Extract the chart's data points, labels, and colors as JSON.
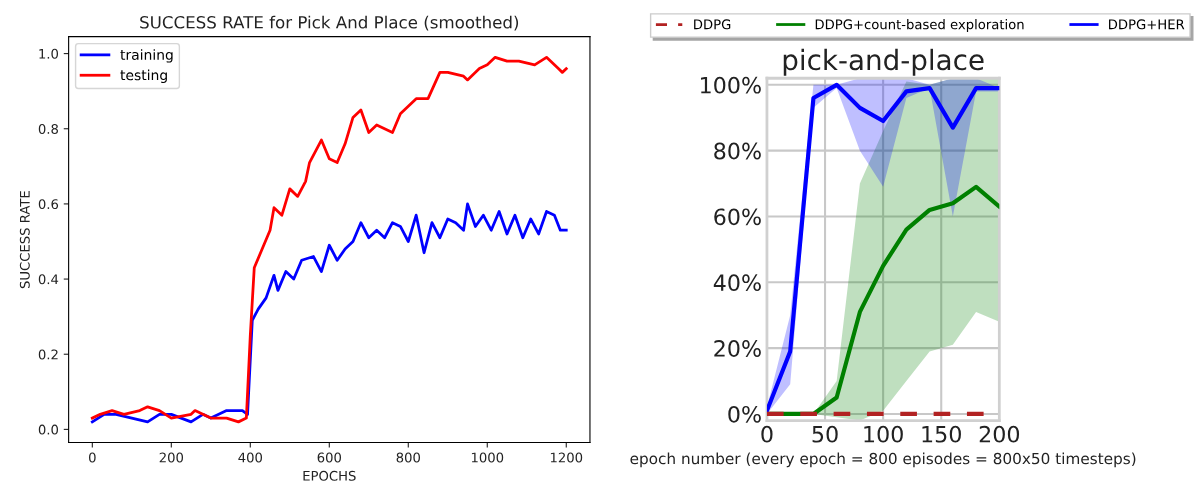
{
  "chart_data": [
    {
      "type": "line",
      "title": "SUCCESS RATE for Pick And Place (smoothed)",
      "xlabel": "EPOCHS",
      "ylabel": "SUCCESS RATE",
      "xlim": [
        -60,
        1260
      ],
      "ylim": [
        -0.035,
        1.045
      ],
      "xticks": [
        0,
        200,
        400,
        600,
        800,
        1000,
        1200
      ],
      "yticks": [
        {
          "value": 0,
          "label": "0.0"
        },
        0.2,
        0.4,
        0.6,
        0.8,
        {
          "value": 1,
          "label": "1.0"
        }
      ],
      "grid": false,
      "legend": "top left",
      "series": [
        {
          "name": "training",
          "color": "#0000ff",
          "x": [
            0,
            30,
            60,
            100,
            140,
            170,
            200,
            250,
            280,
            300,
            340,
            380,
            393,
            405,
            420,
            440,
            460,
            470,
            490,
            510,
            530,
            560,
            580,
            600,
            620,
            640,
            660,
            680,
            700,
            720,
            740,
            760,
            780,
            800,
            820,
            840,
            860,
            880,
            900,
            920,
            940,
            950,
            970,
            990,
            1010,
            1030,
            1050,
            1070,
            1090,
            1110,
            1130,
            1150,
            1170,
            1185,
            1200
          ],
          "values": [
            0.02,
            0.04,
            0.04,
            0.03,
            0.02,
            0.04,
            0.04,
            0.02,
            0.04,
            0.03,
            0.05,
            0.05,
            0.04,
            0.29,
            0.32,
            0.35,
            0.41,
            0.37,
            0.42,
            0.4,
            0.45,
            0.46,
            0.42,
            0.49,
            0.45,
            0.48,
            0.5,
            0.55,
            0.51,
            0.53,
            0.51,
            0.55,
            0.54,
            0.5,
            0.57,
            0.47,
            0.55,
            0.51,
            0.56,
            0.55,
            0.53,
            0.6,
            0.54,
            0.57,
            0.53,
            0.58,
            0.52,
            0.57,
            0.51,
            0.56,
            0.52,
            0.58,
            0.57,
            0.53,
            0.53
          ]
        },
        {
          "name": "testing",
          "color": "#ff0000",
          "x": [
            0,
            20,
            50,
            80,
            120,
            140,
            170,
            200,
            250,
            260,
            300,
            340,
            370,
            390,
            400,
            410,
            430,
            450,
            460,
            480,
            500,
            520,
            540,
            550,
            580,
            600,
            620,
            640,
            660,
            680,
            700,
            720,
            740,
            760,
            780,
            800,
            820,
            850,
            880,
            900,
            940,
            950,
            980,
            1000,
            1020,
            1050,
            1080,
            1120,
            1150,
            1180,
            1190,
            1200
          ],
          "values": [
            0.03,
            0.04,
            0.05,
            0.04,
            0.05,
            0.06,
            0.05,
            0.03,
            0.04,
            0.05,
            0.03,
            0.03,
            0.02,
            0.03,
            0.25,
            0.43,
            0.48,
            0.53,
            0.59,
            0.57,
            0.64,
            0.62,
            0.66,
            0.71,
            0.77,
            0.72,
            0.71,
            0.76,
            0.83,
            0.85,
            0.79,
            0.81,
            0.8,
            0.79,
            0.84,
            0.86,
            0.88,
            0.88,
            0.95,
            0.95,
            0.94,
            0.93,
            0.96,
            0.97,
            0.99,
            0.98,
            0.98,
            0.97,
            0.99,
            0.96,
            0.95,
            0.96
          ]
        }
      ]
    },
    {
      "type": "line",
      "title": "pick-and-place",
      "xlabel": "epoch number (every epoch = 800 episodes = 800x50 timesteps)",
      "x": [
        0,
        20,
        40,
        60,
        80,
        100,
        120,
        140,
        160,
        180,
        200
      ],
      "xlim": [
        0,
        200
      ],
      "ylim": [
        -2,
        102
      ],
      "xticks": [
        0,
        50,
        100,
        150,
        200
      ],
      "yticks": [
        {
          "value": 0,
          "label": "0%"
        },
        {
          "value": 20,
          "label": "20%"
        },
        {
          "value": 40,
          "label": "40%"
        },
        {
          "value": 60,
          "label": "60%"
        },
        {
          "value": 80,
          "label": "80%"
        },
        {
          "value": 100,
          "label": "100%"
        }
      ],
      "grid": true,
      "legend": "top",
      "series": [
        {
          "name": "DDPG",
          "color": "#b22222",
          "line_style": "dashed",
          "values": [
            0,
            0,
            0,
            0,
            0,
            0,
            0,
            0,
            0,
            0,
            0
          ]
        },
        {
          "name": "DDPG+count-based exploration",
          "color": "#008000",
          "values": [
            0,
            0,
            0,
            5,
            31,
            45,
            56,
            62,
            64,
            69,
            63
          ],
          "lower": [
            0,
            0,
            0,
            -1,
            -2,
            1,
            10,
            19,
            21,
            31,
            28
          ],
          "upper": [
            0,
            0,
            0,
            10,
            70,
            86,
            101,
            100,
            102,
            102,
            102
          ]
        },
        {
          "name": "DDPG+HER",
          "color": "#0000ff",
          "values": [
            1,
            19,
            96,
            100,
            93,
            89,
            98,
            99,
            87,
            99,
            99
          ],
          "lower": [
            0,
            9,
            93,
            99,
            80,
            69,
            96,
            99,
            60,
            98,
            98
          ],
          "upper": [
            2,
            30,
            100,
            100,
            102,
            102,
            102,
            100,
            102,
            102,
            99
          ]
        }
      ]
    }
  ]
}
